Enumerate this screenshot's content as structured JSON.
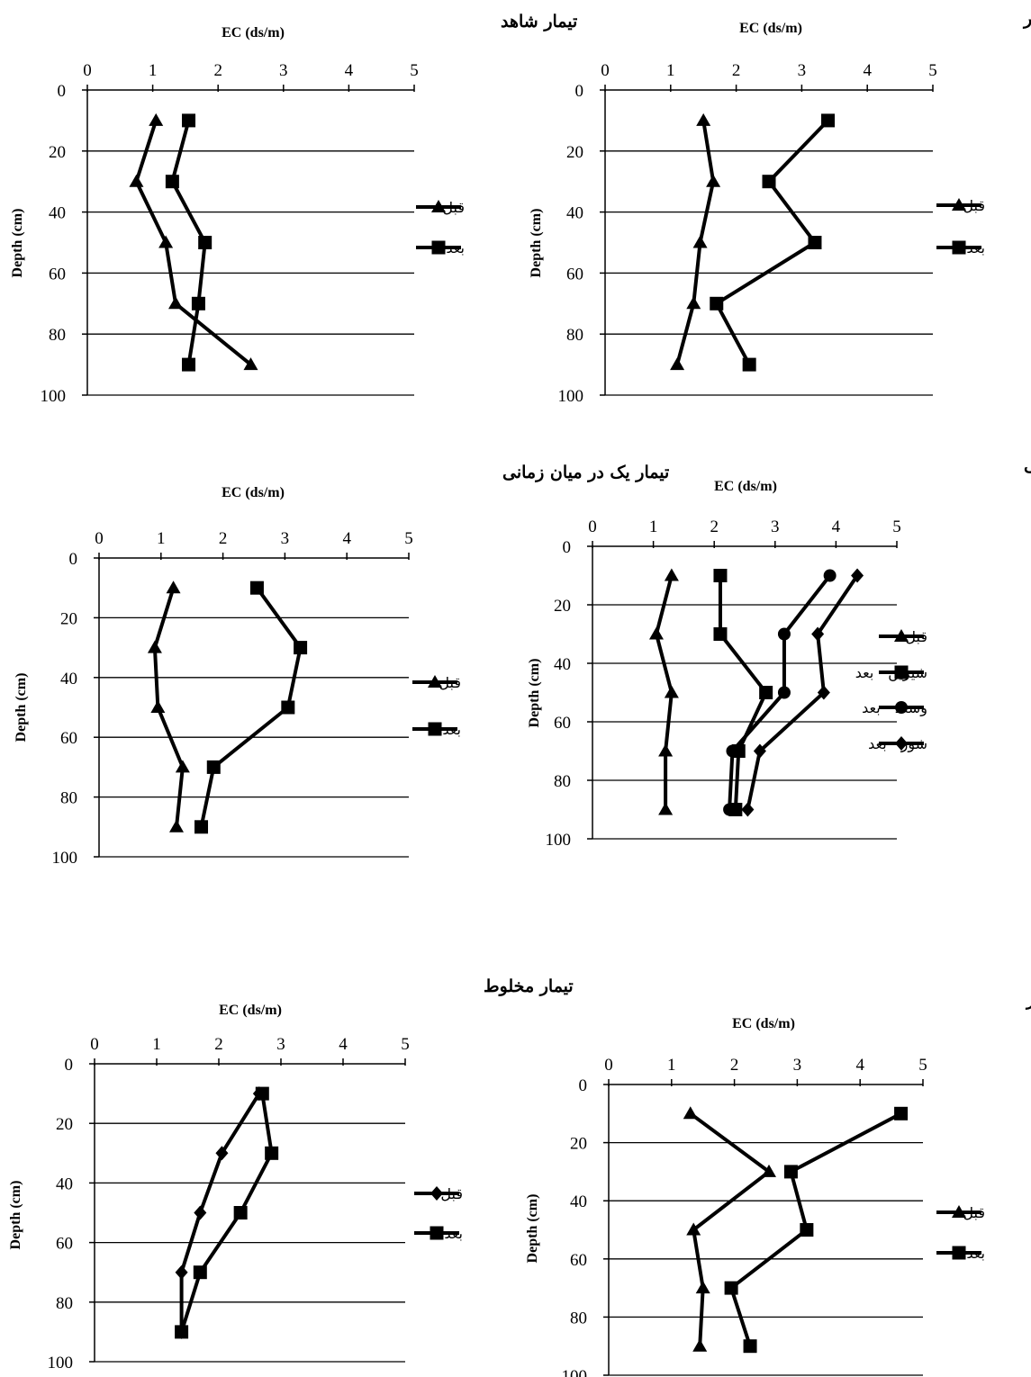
{
  "chart_data": [
    {
      "type": "line",
      "title": "تیمار شاهد",
      "xlabel": "EC (ds/m)",
      "ylabel": "Depth (cm)",
      "xlim": [
        0,
        5
      ],
      "ylim": [
        0,
        100
      ],
      "y_reversed": true,
      "x_axis_position": "top",
      "x_ticks": [
        "0",
        "1",
        "2",
        "3",
        "4",
        "5"
      ],
      "y_ticks": [
        "0",
        "20",
        "40",
        "60",
        "80",
        "100"
      ],
      "grid": "horizontal",
      "legend": "right",
      "y": [
        10,
        30,
        50,
        70,
        90
      ],
      "series": [
        {
          "name": "قبل",
          "marker": "triangle",
          "values": [
            1.05,
            0.75,
            1.2,
            1.35,
            2.5
          ]
        },
        {
          "name": "بعد",
          "marker": "square",
          "values": [
            1.55,
            1.3,
            1.8,
            1.7,
            1.55
          ]
        }
      ]
    },
    {
      "type": "line",
      "title": "تیمار یک دوم شور",
      "xlabel": "EC (ds/m)",
      "ylabel": "Depth (cm)",
      "xlim": [
        0,
        5
      ],
      "ylim": [
        0,
        100
      ],
      "y_reversed": true,
      "x_axis_position": "top",
      "x_ticks": [
        "0",
        "1",
        "2",
        "3",
        "4",
        "5"
      ],
      "y_ticks": [
        "0",
        "20",
        "40",
        "60",
        "80",
        "100"
      ],
      "grid": "horizontal",
      "legend": "right",
      "y": [
        10,
        30,
        50,
        70,
        90
      ],
      "series": [
        {
          "name": "قبل",
          "marker": "triangle",
          "values": [
            1.5,
            1.65,
            1.45,
            1.35,
            1.1
          ]
        },
        {
          "name": "بعد",
          "marker": "square",
          "values": [
            3.4,
            2.5,
            3.2,
            1.7,
            2.2
          ]
        }
      ]
    },
    {
      "type": "line",
      "title": "تیمار یک در میان زمانی",
      "xlabel": "EC (ds/m)",
      "ylabel": "Depth (cm)",
      "xlim": [
        0,
        5
      ],
      "ylim": [
        0,
        100
      ],
      "y_reversed": true,
      "x_axis_position": "top",
      "x_ticks": [
        "0",
        "1",
        "2",
        "3",
        "4",
        "5"
      ],
      "y_ticks": [
        "0",
        "20",
        "40",
        "60",
        "80",
        "100"
      ],
      "grid": "horizontal",
      "legend": "right",
      "y": [
        10,
        30,
        50,
        70,
        90
      ],
      "series": [
        {
          "name": "قبل",
          "marker": "triangle",
          "values": [
            1.2,
            0.9,
            0.95,
            1.35,
            1.25
          ]
        },
        {
          "name": "بعد",
          "marker": "square",
          "values": [
            2.55,
            3.25,
            3.05,
            1.85,
            1.65
          ]
        }
      ]
    },
    {
      "type": "line",
      "title": "تیمار یک در میان مکانی",
      "xlabel": "EC (ds/m)",
      "ylabel": "Depth (cm)",
      "xlim": [
        0,
        5
      ],
      "ylim": [
        0,
        100
      ],
      "y_reversed": true,
      "x_axis_position": "top",
      "x_ticks": [
        "0",
        "1",
        "2",
        "3",
        "4",
        "5"
      ],
      "y_ticks": [
        "0",
        "20",
        "40",
        "60",
        "80",
        "100"
      ],
      "grid": "horizontal",
      "legend": "right",
      "y": [
        10,
        30,
        50,
        70,
        90
      ],
      "series": [
        {
          "name": "قبل",
          "marker": "triangle",
          "values": [
            1.3,
            1.05,
            1.3,
            1.2,
            1.2
          ]
        },
        {
          "name": "شیرین - بعد",
          "marker": "square",
          "values": [
            2.1,
            2.1,
            2.85,
            2.4,
            2.35
          ]
        },
        {
          "name": "وسط - بعد",
          "marker": "circle",
          "values": [
            3.9,
            3.15,
            3.15,
            2.3,
            2.25
          ]
        },
        {
          "name": "شور - بعد",
          "marker": "diamond",
          "values": [
            4.35,
            3.7,
            3.8,
            2.75,
            2.55
          ]
        }
      ]
    },
    {
      "type": "line",
      "title": "تیمار مخلوط",
      "xlabel": "EC (ds/m)",
      "ylabel": "Depth (cm)",
      "xlim": [
        0,
        5
      ],
      "ylim": [
        0,
        100
      ],
      "y_reversed": true,
      "x_axis_position": "top",
      "x_ticks": [
        "0",
        "1",
        "2",
        "3",
        "4",
        "5"
      ],
      "y_ticks": [
        "0",
        "20",
        "40",
        "60",
        "80",
        "100"
      ],
      "grid": "horizontal",
      "legend": "right",
      "y": [
        10,
        30,
        50,
        70,
        90
      ],
      "series": [
        {
          "name": "قبل",
          "marker": "diamond",
          "values": [
            2.65,
            2.05,
            1.7,
            1.4,
            1.4
          ]
        },
        {
          "name": "بعد",
          "marker": "square",
          "values": [
            2.7,
            2.85,
            2.35,
            1.7,
            1.4
          ]
        }
      ]
    },
    {
      "type": "line",
      "title": "تیمار صد در صد شور",
      "xlabel": "EC (ds/m)",
      "ylabel": "Depth (cm)",
      "xlim": [
        0,
        5
      ],
      "ylim": [
        0,
        100
      ],
      "y_reversed": true,
      "x_axis_position": "top",
      "x_ticks": [
        "0",
        "1",
        "2",
        "3",
        "4",
        "5"
      ],
      "y_ticks": [
        "0",
        "20",
        "40",
        "60",
        "80",
        "100"
      ],
      "grid": "horizontal",
      "legend": "right",
      "y": [
        10,
        30,
        50,
        70,
        90
      ],
      "series": [
        {
          "name": "قبل",
          "marker": "triangle",
          "values": [
            1.3,
            2.55,
            1.35,
            1.5,
            1.45
          ]
        },
        {
          "name": "بعد",
          "marker": "square",
          "values": [
            4.65,
            2.9,
            3.15,
            1.95,
            2.25
          ]
        }
      ]
    }
  ]
}
